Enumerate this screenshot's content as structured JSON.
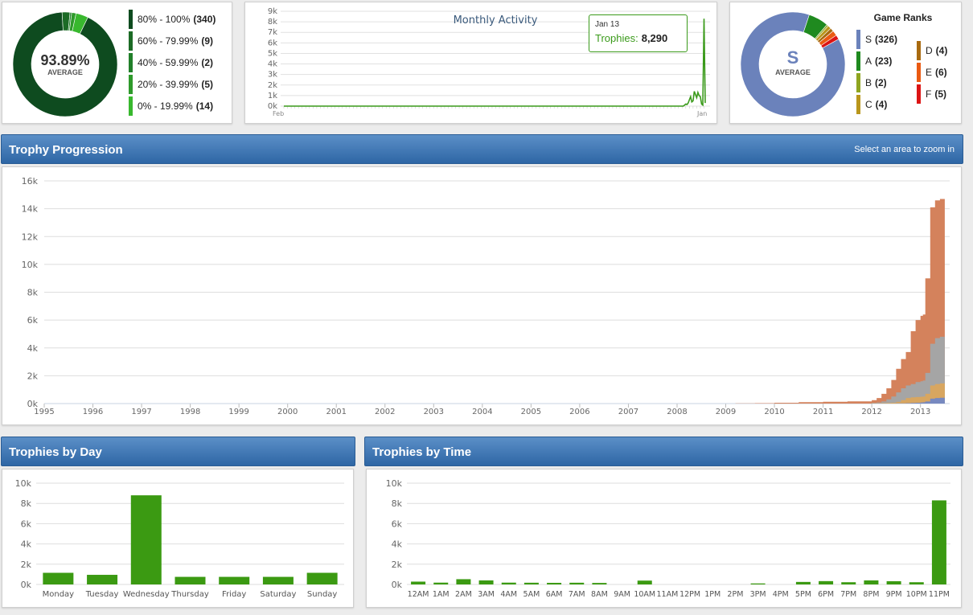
{
  "completion": {
    "value": "93.89%",
    "caption": "AVERAGE",
    "ranges": [
      {
        "label": "80% - 100%",
        "count": "(340)",
        "value": 340,
        "color": "#0e4b1f"
      },
      {
        "label": "60% - 79.99%",
        "count": "(9)",
        "value": 9,
        "color": "#1c6b26"
      },
      {
        "label": "40% - 59.99%",
        "count": "(2)",
        "value": 2,
        "color": "#21802a"
      },
      {
        "label": "20% - 39.99%",
        "count": "(5)",
        "value": 5,
        "color": "#2e9a2b"
      },
      {
        "label": "0% - 19.99%",
        "count": "(14)",
        "value": 14,
        "color": "#38b82e"
      }
    ]
  },
  "monthly": {
    "title": "Monthly Activity",
    "tooltip": {
      "date": "Jan 13",
      "label": "Trophies:",
      "value": "8,290"
    }
  },
  "ranks": {
    "title": "Game Ranks",
    "grade": "S",
    "caption": "AVERAGE",
    "items": [
      {
        "label": "S",
        "count": "(326)",
        "value": 326,
        "color": "#6b82bb"
      },
      {
        "label": "A",
        "count": "(23)",
        "value": 23,
        "color": "#1f8a1f"
      },
      {
        "label": "B",
        "count": "(2)",
        "value": 2,
        "color": "#8fa520"
      },
      {
        "label": "C",
        "count": "(4)",
        "value": 4,
        "color": "#b9961c"
      },
      {
        "label": "D",
        "count": "(4)",
        "value": 4,
        "color": "#a86a10"
      },
      {
        "label": "E",
        "count": "(6)",
        "value": 6,
        "color": "#ea5a12"
      },
      {
        "label": "F",
        "count": "(5)",
        "value": 5,
        "color": "#dc1414"
      }
    ]
  },
  "progression": {
    "title": "Trophy Progression",
    "hint": "Select an area to zoom in"
  },
  "by_day": {
    "title": "Trophies by Day"
  },
  "by_time": {
    "title": "Trophies by Time"
  },
  "chart_data": [
    {
      "type": "line",
      "title": "Monthly Activity",
      "ylim": [
        0,
        9000
      ],
      "yticks": [
        "0k",
        "1k",
        "2k",
        "3k",
        "4k",
        "5k",
        "6k",
        "7k",
        "8k",
        "9k"
      ],
      "x_start_label": "Feb",
      "x_end_label": "Jan",
      "series": [
        {
          "name": "Trophies",
          "values": [
            0,
            0,
            0,
            0,
            0,
            0,
            0,
            0,
            0,
            0,
            0,
            0,
            0,
            0,
            0,
            0,
            0,
            0,
            0,
            0,
            0,
            0,
            0,
            0,
            0,
            0,
            0,
            0,
            0,
            0,
            0,
            0,
            0,
            0,
            0,
            0,
            0,
            0,
            0,
            0,
            0,
            0,
            0,
            0,
            0,
            0,
            0,
            0,
            0,
            0,
            0,
            0,
            0,
            0,
            0,
            0,
            0,
            0,
            0,
            0,
            0,
            0,
            0,
            0,
            0,
            0,
            0,
            0,
            0,
            0,
            0,
            0,
            0,
            0,
            0,
            0,
            0,
            0,
            0,
            0,
            0,
            0,
            0,
            0,
            0,
            0,
            0,
            0,
            0,
            0,
            0,
            0,
            0,
            0,
            0,
            0,
            0,
            0,
            0,
            0,
            0,
            0,
            0,
            0,
            0,
            0,
            0,
            0,
            0,
            0,
            0,
            0,
            0,
            0,
            0,
            0,
            0,
            0,
            0,
            0,
            0,
            0,
            0,
            0,
            0,
            0,
            0,
            0,
            0,
            0,
            0,
            0,
            0,
            0,
            0,
            0,
            0,
            0,
            0,
            0,
            0,
            0,
            0,
            0,
            0,
            0,
            0,
            0,
            0,
            0,
            0,
            0,
            0,
            0,
            0,
            0,
            0,
            0,
            0,
            0,
            0,
            0,
            0,
            0,
            0,
            0,
            0,
            0,
            0,
            0,
            0,
            0,
            0,
            0,
            0,
            0,
            0,
            0,
            0,
            0,
            0,
            0,
            0,
            0,
            0,
            0,
            0,
            0,
            0,
            0,
            0,
            0,
            0,
            0,
            0,
            0,
            0,
            0,
            0,
            0,
            0,
            0,
            0,
            0,
            0,
            0,
            0,
            0,
            0,
            0,
            0,
            0,
            0,
            0,
            0,
            0,
            0,
            0,
            0,
            0,
            0,
            0,
            0,
            0,
            0,
            0,
            0,
            0,
            0,
            0,
            0,
            0,
            0,
            0,
            0,
            0,
            0,
            0,
            0,
            0,
            0,
            0,
            0,
            0,
            0,
            0,
            0,
            0,
            0,
            0,
            0,
            0,
            0,
            0,
            0,
            0,
            0,
            0,
            0,
            0,
            0,
            0,
            0,
            0,
            0,
            0,
            0,
            0,
            0,
            0,
            0,
            0,
            0,
            0,
            0,
            0,
            0,
            0,
            0,
            0,
            0,
            0,
            0,
            0,
            0,
            0,
            0,
            0,
            0,
            0,
            0,
            0,
            0,
            0,
            0,
            0,
            0,
            0,
            0,
            0,
            0,
            0,
            0,
            0,
            0,
            0,
            0,
            0,
            0,
            0,
            0,
            0,
            0,
            0,
            0,
            0,
            0,
            0,
            0,
            0,
            0,
            0,
            0,
            0,
            0,
            0,
            0,
            0,
            0,
            100,
            200,
            150,
            300,
            600,
            900,
            400,
            500,
            1400,
            1100,
            800,
            1300,
            1000,
            900,
            200,
            100,
            8290,
            300
          ]
        }
      ]
    },
    {
      "type": "area",
      "title": "Trophy Progression",
      "x_ticks": [
        "1995",
        "1996",
        "1997",
        "1998",
        "1999",
        "2000",
        "2001",
        "2002",
        "2003",
        "2004",
        "2005",
        "2006",
        "2007",
        "2008",
        "2009",
        "2010",
        "2011",
        "2012",
        "2013"
      ],
      "x_range": [
        1995,
        2013.6
      ],
      "ylim": [
        0,
        16000
      ],
      "yticks": [
        "0k",
        "2k",
        "4k",
        "6k",
        "8k",
        "10k",
        "12k",
        "14k",
        "16k"
      ],
      "x": [
        1995,
        2008.8,
        2009.2,
        2009.6,
        2010.0,
        2010.5,
        2011.0,
        2011.5,
        2012.0,
        2012.1,
        2012.2,
        2012.3,
        2012.4,
        2012.5,
        2012.6,
        2012.7,
        2012.8,
        2012.9,
        2013.0,
        2013.05,
        2013.1,
        2013.2,
        2013.3,
        2013.4,
        2013.5
      ],
      "series": [
        {
          "name": "",
          "color": "#7789c0",
          "values": [
            0,
            0,
            0,
            0,
            0,
            0,
            0,
            0,
            0,
            0,
            0,
            0,
            0,
            10,
            20,
            30,
            40,
            60,
            80,
            90,
            150,
            350,
            400,
            420,
            420
          ]
        },
        {
          "name": "",
          "color": "#d8a660",
          "values": [
            0,
            0,
            0,
            0,
            0,
            0,
            0,
            0,
            10,
            20,
            30,
            40,
            60,
            120,
            250,
            400,
            450,
            470,
            490,
            500,
            700,
            1300,
            1400,
            1450,
            1450
          ]
        },
        {
          "name": "",
          "color": "#a5a5a5",
          "values": [
            0,
            0,
            0,
            0,
            0,
            0,
            0,
            0,
            50,
            80,
            150,
            300,
            500,
            800,
            1100,
            1300,
            1400,
            1550,
            1600,
            1650,
            2200,
            4300,
            4700,
            4800,
            4800
          ]
        },
        {
          "name": "",
          "color": "#d4825c",
          "values": [
            0,
            0,
            10,
            30,
            60,
            100,
            130,
            160,
            250,
            400,
            700,
            1100,
            1700,
            2500,
            3200,
            3700,
            5200,
            6000,
            6300,
            6400,
            9000,
            14100,
            14600,
            14700,
            14700
          ]
        }
      ]
    },
    {
      "type": "bar",
      "title": "Trophies by Day",
      "categories": [
        "Monday",
        "Tuesday",
        "Wednesday",
        "Thursday",
        "Friday",
        "Saturday",
        "Sunday"
      ],
      "values": [
        1150,
        950,
        8800,
        750,
        750,
        750,
        1150
      ],
      "ylim": [
        0,
        10000
      ],
      "yticks": [
        "0k",
        "2k",
        "4k",
        "6k",
        "8k",
        "10k"
      ]
    },
    {
      "type": "bar",
      "title": "Trophies by Time",
      "categories": [
        "12AM",
        "1AM",
        "2AM",
        "3AM",
        "4AM",
        "5AM",
        "6AM",
        "7AM",
        "8AM",
        "9AM",
        "10AM",
        "11AM",
        "12PM",
        "1PM",
        "2PM",
        "3PM",
        "4PM",
        "5PM",
        "6PM",
        "7PM",
        "8PM",
        "9PM",
        "10PM",
        "11PM"
      ],
      "values": [
        280,
        180,
        520,
        400,
        180,
        170,
        160,
        170,
        150,
        0,
        380,
        0,
        0,
        0,
        0,
        100,
        0,
        250,
        330,
        220,
        400,
        320,
        220,
        8300
      ],
      "ylim": [
        0,
        10000
      ],
      "yticks": [
        "0k",
        "2k",
        "4k",
        "6k",
        "8k",
        "10k"
      ]
    }
  ]
}
